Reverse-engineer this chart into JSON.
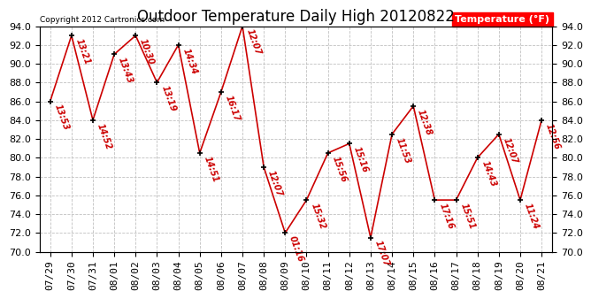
{
  "title": "Outdoor Temperature Daily High 20120822",
  "copyright": "Copyright 2012 Cartronics.com",
  "legend_label": "Temperature (°F)",
  "dates": [
    "07/29",
    "07/30",
    "07/31",
    "08/01",
    "08/02",
    "08/03",
    "08/04",
    "08/05",
    "08/06",
    "08/07",
    "08/08",
    "08/09",
    "08/10",
    "08/11",
    "08/12",
    "08/13",
    "08/14",
    "08/15",
    "08/16",
    "08/17",
    "08/18",
    "08/19",
    "08/20",
    "08/21"
  ],
  "temps": [
    86.0,
    93.0,
    84.0,
    91.0,
    93.0,
    88.0,
    92.0,
    80.5,
    87.0,
    94.0,
    79.0,
    72.0,
    75.5,
    80.5,
    81.5,
    71.5,
    82.5,
    85.5,
    75.5,
    75.5,
    80.0,
    82.5,
    75.5,
    84.0
  ],
  "time_labels": [
    "13:53",
    "13:21",
    "14:52",
    "13:43",
    "10:30",
    "13:19",
    "14:34",
    "14:51",
    "16:17",
    "12:07",
    "12:07",
    "01:16",
    "15:32",
    "15:56",
    "15:16",
    "17:07",
    "11:53",
    "12:38",
    "17:16",
    "15:51",
    "14:43",
    "12:07",
    "11:24",
    "12:56"
  ],
  "ylim": [
    70.0,
    94.0
  ],
  "yticks": [
    70.0,
    72.0,
    74.0,
    76.0,
    78.0,
    80.0,
    82.0,
    84.0,
    86.0,
    88.0,
    90.0,
    92.0,
    94.0
  ],
  "line_color": "#cc0000",
  "marker_color": "#000000",
  "bg_color": "#ffffff",
  "grid_color": "#c0c0c0",
  "title_fontsize": 12,
  "tick_fontsize": 8,
  "annot_fontsize": 7
}
